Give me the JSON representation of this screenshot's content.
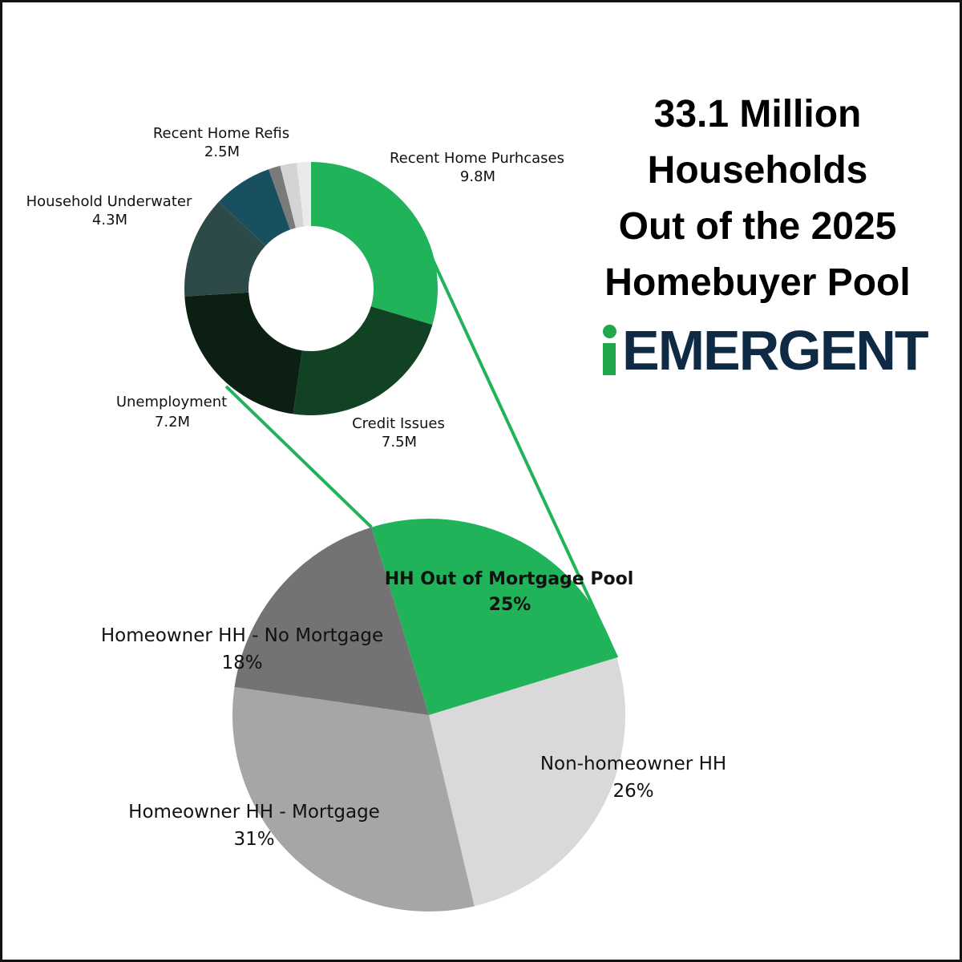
{
  "title_lines": [
    "33.1 Million",
    "Households",
    "Out of the 2025",
    "Homebuyer Pool"
  ],
  "logo": {
    "text": "EMERGENT",
    "icon": "i-letter-icon",
    "colors": {
      "i": "#21a84a",
      "text": "#0e2a44"
    }
  },
  "chart_data": [
    {
      "type": "pie",
      "style": "donut",
      "unit": "M",
      "slices": [
        {
          "label": "Recent Home Purhcases",
          "value": 9.8,
          "value_label": "9.8M",
          "color": "#21b35a"
        },
        {
          "label": "Credit Issues",
          "value": 7.5,
          "value_label": "7.5M",
          "color": "#124224"
        },
        {
          "label": "Unemployment",
          "value": 7.2,
          "value_label": "7.2M",
          "color": "#0b1f12"
        },
        {
          "label": "Household Underwater",
          "value": 4.3,
          "value_label": "4.3M",
          "color": "#2d4a48"
        },
        {
          "label": "Recent Home Refis",
          "value": 2.5,
          "value_label": "2.5M",
          "color": "#185060"
        },
        {
          "label": "",
          "value": 0.5,
          "value_label": "",
          "color": "#7a7a7a"
        },
        {
          "label": "",
          "value": 0.7,
          "value_label": "",
          "color": "#d4d4d4"
        },
        {
          "label": "",
          "value": 0.6,
          "value_label": "",
          "color": "#eaeaea"
        }
      ]
    },
    {
      "type": "pie",
      "unit": "%",
      "slices": [
        {
          "label": "HH Out of Mortgage Pool",
          "value": 25,
          "value_label": "25%",
          "color": "#21b35a",
          "emphasis": true
        },
        {
          "label": "Non-homeowner HH",
          "value": 26,
          "value_label": "26%",
          "color": "#d9d9d9"
        },
        {
          "label": "Homeowner HH - Mortgage",
          "value": 31,
          "value_label": "31%",
          "color": "#a6a6a6"
        },
        {
          "label": "Homeowner HH - No Mortgage",
          "value": 18,
          "value_label": "18%",
          "color": "#737373"
        }
      ]
    }
  ]
}
